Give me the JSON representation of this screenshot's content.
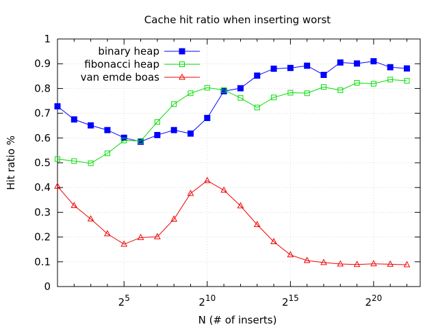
{
  "chart_data": {
    "type": "line",
    "title": "Cache hit ratio when inserting worst",
    "xlabel": "N (# of inserts)",
    "ylabel": "Hit ratio %",
    "x_scale": "log2",
    "xlim": [
      1,
      22.8
    ],
    "ylim": [
      0,
      1
    ],
    "grid": true,
    "legend_position": "top-left",
    "x_ticks": [
      {
        "value": 5,
        "base": "2",
        "exp": "5"
      },
      {
        "value": 10,
        "base": "2",
        "exp": "10"
      },
      {
        "value": 15,
        "base": "2",
        "exp": "15"
      },
      {
        "value": 20,
        "base": "2",
        "exp": "20"
      }
    ],
    "y_ticks": [
      "0",
      "0.1",
      "0.2",
      "0.3",
      "0.4",
      "0.5",
      "0.6",
      "0.7",
      "0.8",
      "0.9",
      "1"
    ],
    "x": [
      1,
      2,
      3,
      4,
      5,
      6,
      7,
      8,
      9,
      10,
      11,
      12,
      13,
      14,
      15,
      16,
      17,
      18,
      19,
      20,
      21,
      22
    ],
    "series": [
      {
        "name": "binary heap",
        "color": "#0000ff",
        "marker": "filled-square",
        "values": [
          0.728,
          0.675,
          0.651,
          0.632,
          0.601,
          0.585,
          0.612,
          0.632,
          0.618,
          0.681,
          0.789,
          0.801,
          0.852,
          0.88,
          0.883,
          0.892,
          0.855,
          0.905,
          0.901,
          0.91,
          0.886,
          0.881
        ]
      },
      {
        "name": "fibonacci heap",
        "color": "#00dd00",
        "marker": "open-square",
        "values": [
          0.515,
          0.507,
          0.498,
          0.538,
          0.59,
          0.588,
          0.665,
          0.737,
          0.781,
          0.803,
          0.794,
          0.762,
          0.723,
          0.764,
          0.783,
          0.781,
          0.806,
          0.793,
          0.823,
          0.819,
          0.836,
          0.831
        ]
      },
      {
        "name": "van emde boas",
        "color": "#ee0000",
        "marker": "open-triangle",
        "values": [
          0.405,
          0.327,
          0.273,
          0.213,
          0.171,
          0.198,
          0.201,
          0.272,
          0.376,
          0.428,
          0.389,
          0.326,
          0.25,
          0.181,
          0.128,
          0.105,
          0.097,
          0.091,
          0.089,
          0.092,
          0.09,
          0.088
        ]
      }
    ]
  }
}
